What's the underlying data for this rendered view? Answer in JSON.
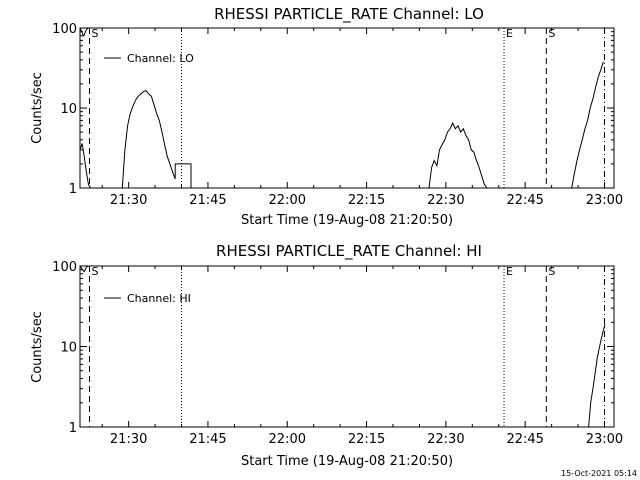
{
  "footer": {
    "timestamp": "15-Oct-2021 05:14"
  },
  "chart_data": [
    {
      "type": "line",
      "title": "RHESSI PARTICLE_RATE Channel: LO",
      "xlabel": "Start Time (19-Aug-08 21:20:50)",
      "ylabel": "Counts/sec",
      "y_scale": "log",
      "ylim": [
        1,
        100
      ],
      "xlim_minutes_since_start": [
        0,
        101
      ],
      "x_tick_labels": [
        "21:30",
        "21:45",
        "22:00",
        "22:15",
        "22:30",
        "22:45",
        "23:00"
      ],
      "x_ticks": [
        9.2,
        24.2,
        39.2,
        54.2,
        69.2,
        84.2,
        99.2
      ],
      "y_tick_labels": [
        "1",
        "10",
        "100"
      ],
      "y_ticks": [
        1,
        10,
        100
      ],
      "legend": {
        "label": "Channel: LO",
        "position": "top-left"
      },
      "markers": [
        {
          "x": 1.8,
          "style": "dashed",
          "label": "S"
        },
        {
          "x": 19.2,
          "style": "dotted",
          "label": ""
        },
        {
          "x": 80.2,
          "style": "dotted",
          "label": "E"
        },
        {
          "x": 88.2,
          "style": "dashed",
          "label": "S"
        },
        {
          "x": 99.2,
          "style": "dashdot",
          "label": ""
        }
      ],
      "series": [
        {
          "name": "Channel: LO",
          "segments": [
            [
              [
                0,
                3
              ],
              [
                0.4,
                3.6
              ],
              [
                0.8,
                2.5
              ],
              [
                1.2,
                1.6
              ],
              [
                1.6,
                1.1
              ],
              [
                2,
                1
              ]
            ],
            [
              [
                0,
                100
              ],
              [
                0.3,
                90
              ],
              [
                0.7,
                80
              ],
              [
                1.2,
                95
              ],
              [
                1.5,
                100
              ]
            ],
            [
              [
                8,
                1
              ],
              [
                8.5,
                3
              ],
              [
                9,
                6
              ],
              [
                9.5,
                8.5
              ],
              [
                10,
                10.5
              ],
              [
                10.5,
                12.5
              ],
              [
                11,
                14
              ],
              [
                11.5,
                15
              ],
              [
                12,
                16
              ],
              [
                12.5,
                16.5
              ],
              [
                13,
                15
              ],
              [
                13.5,
                14
              ],
              [
                14,
                11
              ],
              [
                14.5,
                8.5
              ],
              [
                15,
                7
              ],
              [
                15.5,
                5
              ],
              [
                16,
                3.5
              ],
              [
                16.5,
                2.5
              ],
              [
                17,
                2
              ],
              [
                17.5,
                1.6
              ],
              [
                18,
                1.3
              ],
              [
                18,
                2
              ],
              [
                21,
                2
              ],
              [
                21,
                1
              ]
            ],
            [
              [
                66,
                1
              ],
              [
                66.5,
                1.8
              ],
              [
                67,
                2.2
              ],
              [
                67.5,
                1.9
              ],
              [
                68,
                3
              ],
              [
                68.5,
                3.5
              ],
              [
                69,
                4
              ],
              [
                69.5,
                5
              ],
              [
                70,
                5.5
              ],
              [
                70.5,
                6.5
              ],
              [
                71,
                5.5
              ],
              [
                71.5,
                6
              ],
              [
                72,
                5
              ],
              [
                72.5,
                5.5
              ],
              [
                73,
                4.5
              ],
              [
                73.5,
                4
              ],
              [
                74,
                3
              ],
              [
                74.5,
                2.8
              ],
              [
                75,
                2.2
              ],
              [
                75.5,
                1.8
              ],
              [
                76,
                1.4
              ],
              [
                76.5,
                1.1
              ],
              [
                77,
                1
              ]
            ],
            [
              [
                93,
                1
              ],
              [
                93.5,
                1.5
              ],
              [
                94,
                2.2
              ],
              [
                94.5,
                3
              ],
              [
                95,
                4
              ],
              [
                95.5,
                5.5
              ],
              [
                96,
                7
              ],
              [
                96.5,
                10
              ],
              [
                97,
                13
              ],
              [
                97.5,
                18
              ],
              [
                98,
                24
              ],
              [
                98.5,
                30
              ],
              [
                99,
                38
              ]
            ]
          ]
        }
      ]
    },
    {
      "type": "line",
      "title": "RHESSI PARTICLE_RATE Channel: HI",
      "xlabel": "Start Time (19-Aug-08 21:20:50)",
      "ylabel": "Counts/sec",
      "y_scale": "log",
      "ylim": [
        1,
        100
      ],
      "xlim_minutes_since_start": [
        0,
        101
      ],
      "x_tick_labels": [
        "21:30",
        "21:45",
        "22:00",
        "22:15",
        "22:30",
        "22:45",
        "23:00"
      ],
      "x_ticks": [
        9.2,
        24.2,
        39.2,
        54.2,
        69.2,
        84.2,
        99.2
      ],
      "y_tick_labels": [
        "1",
        "10",
        "100"
      ],
      "y_ticks": [
        1,
        10,
        100
      ],
      "legend": {
        "label": "Channel: HI",
        "position": "top-left"
      },
      "markers": [
        {
          "x": 1.8,
          "style": "dashed",
          "label": "S"
        },
        {
          "x": 19.2,
          "style": "dotted",
          "label": ""
        },
        {
          "x": 80.2,
          "style": "dotted",
          "label": "E"
        },
        {
          "x": 88.2,
          "style": "dashed",
          "label": "S"
        },
        {
          "x": 99.2,
          "style": "dashdot",
          "label": ""
        }
      ],
      "series": [
        {
          "name": "Channel: HI",
          "segments": [
            [
              [
                0,
                100
              ],
              [
                0.4,
                92
              ],
              [
                0.8,
                85
              ],
              [
                1.2,
                96
              ],
              [
                1.5,
                100
              ]
            ],
            [
              [
                96.2,
                1
              ],
              [
                96.6,
                2
              ],
              [
                97,
                3
              ],
              [
                97.4,
                4.5
              ],
              [
                97.8,
                7
              ],
              [
                98.2,
                9.5
              ],
              [
                98.6,
                12.5
              ],
              [
                99,
                16
              ],
              [
                99.3,
                19
              ]
            ]
          ]
        }
      ]
    }
  ]
}
